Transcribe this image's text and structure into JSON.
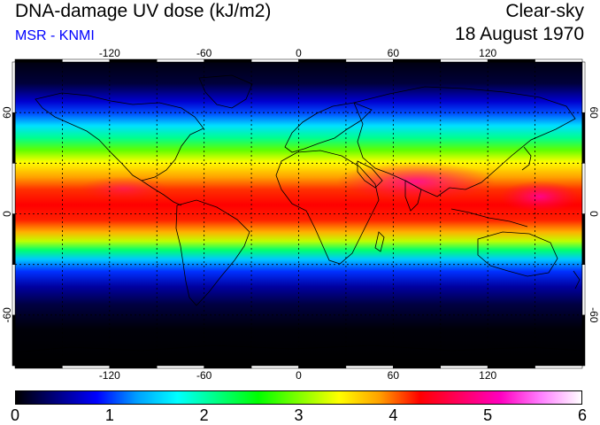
{
  "title": "DNA-damage UV dose (kJ/m2)",
  "source": "MSR - KNMI",
  "sky_condition": "Clear-sky",
  "date": "18 August 1970",
  "colors": {
    "source_text": "#0000ff",
    "grid": "#000000",
    "frame": "#000000"
  },
  "map": {
    "projection": "equirectangular",
    "lon_range": [
      -180,
      180
    ],
    "lat_range": [
      -90,
      90
    ],
    "lon_ticks": [
      "-120",
      "-60",
      "0",
      "60",
      "120"
    ],
    "lat_ticks": [
      "60",
      "0",
      "-60"
    ],
    "grid_lon_values": [
      -150,
      -120,
      -90,
      -60,
      -30,
      0,
      30,
      60,
      90,
      120,
      150
    ],
    "grid_lat_values": [
      -60,
      -30,
      0,
      30,
      60
    ]
  },
  "colorbar": {
    "min": 0,
    "max": 6,
    "labels": [
      "0",
      "1",
      "2",
      "3",
      "4",
      "5",
      "6"
    ],
    "stops": [
      "#000000",
      "#000080",
      "#0000ff",
      "#00a0ff",
      "#00ffff",
      "#00ff80",
      "#00ff00",
      "#80ff00",
      "#ffff00",
      "#ffa000",
      "#ff0000",
      "#ff0060",
      "#ff00c0",
      "#ff80ff",
      "#ffffff"
    ]
  }
}
